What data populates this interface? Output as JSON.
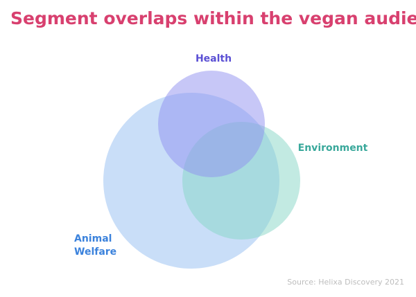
{
  "title": "Segment overlaps within the vegan audience",
  "sets": [
    {
      "label": [
        "Animal",
        "Welfare"
      ]
    },
    {
      "label": [
        "Health"
      ]
    },
    {
      "label": [
        "Environment"
      ]
    }
  ],
  "source": "Source: Helixa Discovery 2021"
}
